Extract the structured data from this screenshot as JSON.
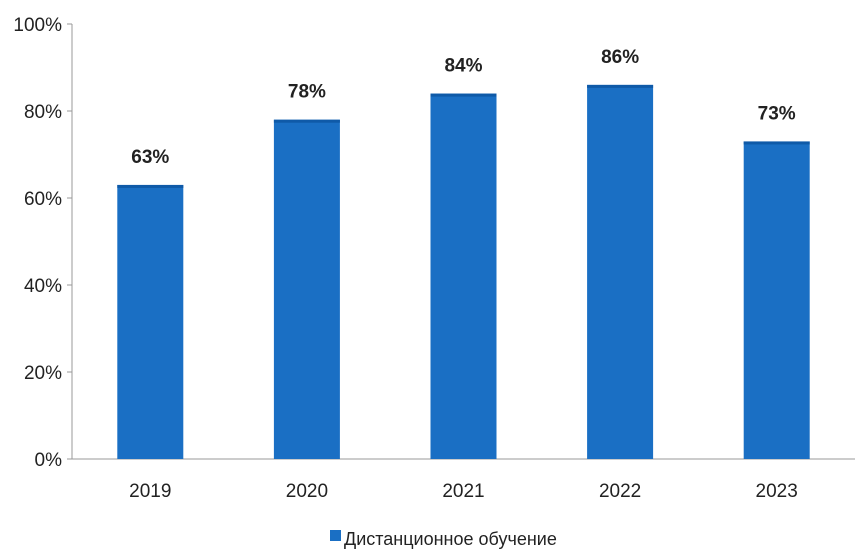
{
  "chart_data": {
    "type": "bar",
    "categories": [
      "2019",
      "2020",
      "2021",
      "2022",
      "2023"
    ],
    "series": [
      {
        "name": "Дистанционное обучение",
        "values": [
          63,
          78,
          84,
          86,
          73
        ],
        "labels": [
          "63%",
          "78%",
          "84%",
          "86%",
          "73%"
        ],
        "color": "#1a6fc4"
      }
    ],
    "yticks": [
      {
        "value": 0,
        "label": "0%"
      },
      {
        "value": 20,
        "label": "20%"
      },
      {
        "value": 40,
        "label": "40%"
      },
      {
        "value": 60,
        "label": "60%"
      },
      {
        "value": 80,
        "label": "80%"
      },
      {
        "value": 100,
        "label": "100%"
      }
    ],
    "ylim": [
      0,
      100
    ],
    "grid": false,
    "legend_position": "bottom-center",
    "axis_color": "#999999"
  }
}
